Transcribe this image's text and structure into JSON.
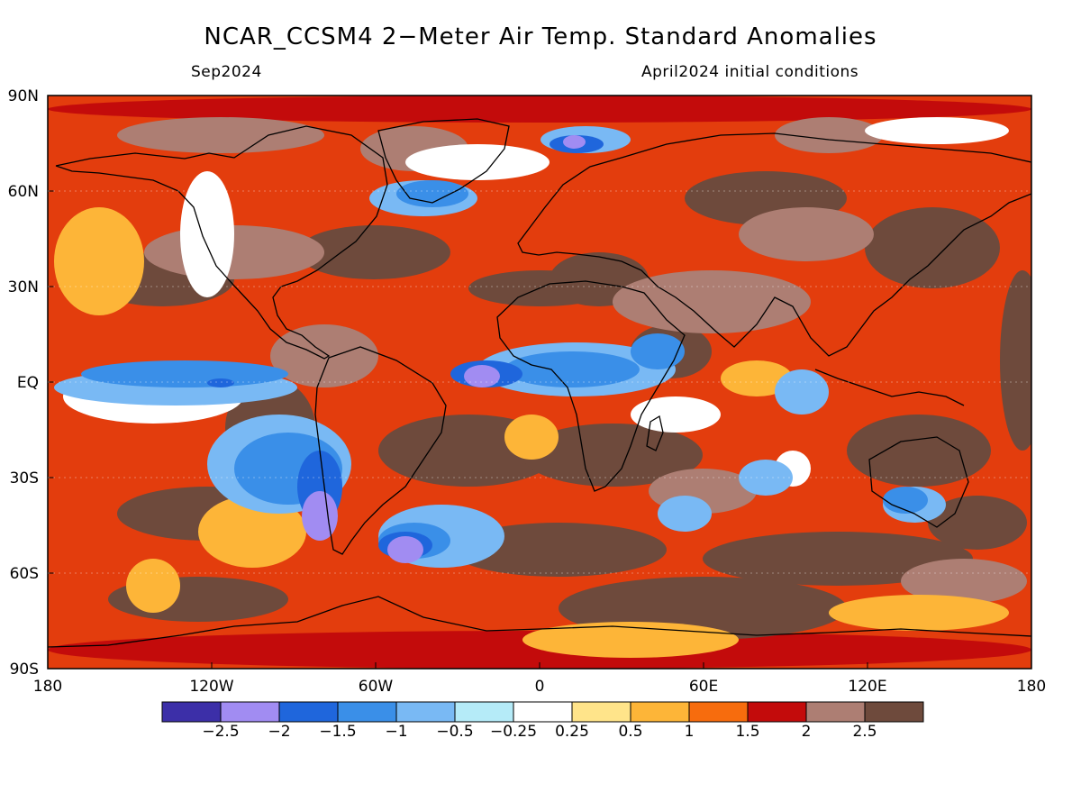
{
  "title": "NCAR_CCSM4 2−Meter Air Temp. Standard Anomalies",
  "subtitle_left": "Sep2024",
  "subtitle_right": "April2024 initial conditions",
  "map": {
    "lat_labels": [
      "90N",
      "60N",
      "30N",
      "EQ",
      "30S",
      "60S",
      "90S"
    ],
    "lon_labels": [
      "180",
      "120W",
      "60W",
      "0",
      "60E",
      "120E",
      "180"
    ],
    "ocean_base_color": "#e33d0d"
  },
  "colorbar": {
    "levels": [
      "−2.5",
      "−2",
      "−1.5",
      "−1",
      "−0.5",
      "−0.25",
      "0.25",
      "0.5",
      "1",
      "1.5",
      "2",
      "2.5"
    ],
    "colors": [
      "#3c2fa8",
      "#a18cf2",
      "#1f66dc",
      "#3a8fe8",
      "#79b9f4",
      "#b5ebf8",
      "#ffffff",
      "#ffe48a",
      "#fdb538",
      "#f76c0d",
      "#c30b0b",
      "#ad7e73",
      "#6e4a3c"
    ]
  }
}
